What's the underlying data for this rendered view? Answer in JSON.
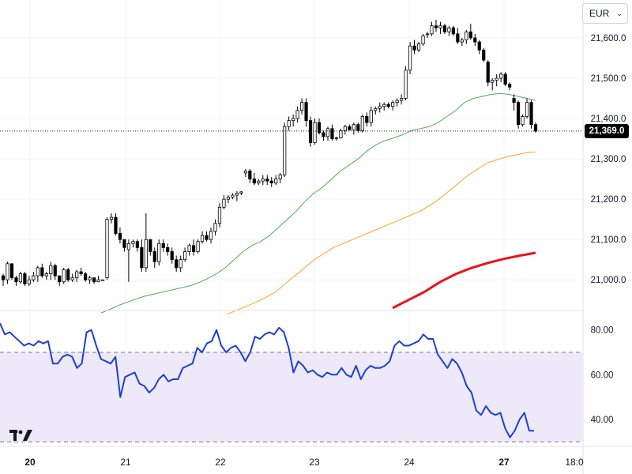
{
  "currency": {
    "label": "EUR"
  },
  "last_price": {
    "label": "21,369.0",
    "value": 21369
  },
  "colors": {
    "candle": "#000000",
    "sma_short": "#4caf50",
    "sma_mid": "#f5a623",
    "sma_long": "#e8141a",
    "rsi": "#1e3fd1",
    "rsi_band": "#ede9f9"
  },
  "chart_data": [
    {
      "type": "candlestick",
      "title": "",
      "price_axis": {
        "ticks": [
          21000,
          21100,
          21200,
          21300,
          21400,
          21500,
          21600
        ],
        "tick_labels": [
          "21,000.0",
          "21,100.0",
          "21,200.0",
          "21,300.0",
          "21,400.0",
          "21,500.0",
          "21,600.0"
        ],
        "ylim": [
          20924,
          21694
        ]
      },
      "time_axis": {
        "labels": [
          "20",
          "21",
          "22",
          "23",
          "24",
          "27",
          "18:0"
        ]
      },
      "candles_ohlc": [
        [
          21010,
          21015,
          20985,
          21000
        ],
        [
          21000,
          21045,
          20990,
          21040
        ],
        [
          21040,
          21040,
          21000,
          21005
        ],
        [
          21005,
          21010,
          20985,
          20995
        ],
        [
          20995,
          21020,
          20990,
          21015
        ],
        [
          21015,
          21020,
          20985,
          20990
        ],
        [
          20990,
          21010,
          20985,
          21000
        ],
        [
          21000,
          21020,
          20995,
          21010
        ],
        [
          21010,
          21035,
          20995,
          21030
        ],
        [
          21030,
          21040,
          21005,
          21010
        ],
        [
          21010,
          21020,
          21000,
          21015
        ],
        [
          21015,
          21045,
          21000,
          21035
        ],
        [
          21035,
          21040,
          21000,
          21010
        ],
        [
          21010,
          21010,
          20985,
          20995
        ],
        [
          20995,
          21030,
          20990,
          21025
        ],
        [
          21025,
          21030,
          20995,
          21000
        ],
        [
          21000,
          21015,
          20995,
          21005
        ],
        [
          21005,
          21025,
          20995,
          21020
        ],
        [
          21020,
          21030,
          21010,
          21015
        ],
        [
          21015,
          21020,
          20995,
          21000
        ],
        [
          21000,
          21010,
          20990,
          21005
        ],
        [
          21005,
          21005,
          20990,
          20995
        ],
        [
          20995,
          21010,
          20995,
          21000
        ],
        [
          21000,
          21000,
          21000,
          21000
        ],
        [
          21005,
          21155,
          21000,
          21150
        ],
        [
          21150,
          21165,
          21140,
          21155
        ],
        [
          21155,
          21165,
          21110,
          21115
        ],
        [
          21115,
          21130,
          21090,
          21100
        ],
        [
          21100,
          21100,
          21070,
          21080
        ],
        [
          21075,
          21100,
          20995,
          21090
        ],
        [
          21090,
          21100,
          21080,
          21095
        ],
        [
          21095,
          21100,
          21070,
          21080
        ],
        [
          21080,
          21100,
          21020,
          21030
        ],
        [
          21030,
          21165,
          21020,
          21100
        ],
        [
          21100,
          21100,
          21060,
          21070
        ],
        [
          21070,
          21080,
          21030,
          21045
        ],
        [
          21045,
          21100,
          21035,
          21090
        ],
        [
          21090,
          21100,
          21070,
          21080
        ],
        [
          21080,
          21090,
          21060,
          21070
        ],
        [
          21070,
          21080,
          21040,
          21050
        ],
        [
          21050,
          21060,
          21020,
          21030
        ],
        [
          21030,
          21060,
          21020,
          21050
        ],
        [
          21050,
          21080,
          21045,
          21070
        ],
        [
          21070,
          21090,
          21060,
          21085
        ],
        [
          21085,
          21100,
          21060,
          21070
        ],
        [
          21070,
          21100,
          21065,
          21095
        ],
        [
          21095,
          21120,
          21090,
          21110
        ],
        [
          21110,
          21120,
          21095,
          21100
        ],
        [
          21100,
          21130,
          21090,
          21120
        ],
        [
          21120,
          21150,
          21110,
          21140
        ],
        [
          21140,
          21190,
          21130,
          21180
        ],
        [
          21180,
          21210,
          21175,
          21200
        ],
        [
          21200,
          21210,
          21190,
          21205
        ],
        [
          21205,
          21215,
          21200,
          21210
        ],
        [
          21210,
          21220,
          21195,
          21215
        ],
        [
          21215,
          21220,
          21210,
          21218
        ],
        [
          21265,
          21275,
          21255,
          21270
        ],
        [
          21270,
          21275,
          21240,
          21250
        ],
        [
          21250,
          21265,
          21235,
          21240
        ],
        [
          21240,
          21250,
          21235,
          21245
        ],
        [
          21245,
          21260,
          21235,
          21250
        ],
        [
          21250,
          21260,
          21235,
          21245
        ],
        [
          21245,
          21255,
          21230,
          21240
        ],
        [
          21240,
          21260,
          21235,
          21250
        ],
        [
          21250,
          21265,
          21240,
          21260
        ],
        [
          21260,
          21390,
          21255,
          21380
        ],
        [
          21380,
          21405,
          21370,
          21395
        ],
        [
          21395,
          21410,
          21380,
          21400
        ],
        [
          21400,
          21430,
          21390,
          21420
        ],
        [
          21420,
          21450,
          21410,
          21440
        ],
        [
          21440,
          21450,
          21380,
          21395
        ],
        [
          21395,
          21405,
          21330,
          21340
        ],
        [
          21340,
          21400,
          21335,
          21390
        ],
        [
          21390,
          21400,
          21360,
          21365
        ],
        [
          21365,
          21370,
          21345,
          21355
        ],
        [
          21355,
          21380,
          21345,
          21375
        ],
        [
          21375,
          21385,
          21345,
          21350
        ],
        [
          21350,
          21355,
          21345,
          21352
        ],
        [
          21352,
          21375,
          21350,
          21370
        ],
        [
          21370,
          21385,
          21360,
          21380
        ],
        [
          21380,
          21385,
          21370,
          21372
        ],
        [
          21372,
          21390,
          21360,
          21385
        ],
        [
          21385,
          21390,
          21365,
          21370
        ],
        [
          21370,
          21410,
          21365,
          21405
        ],
        [
          21405,
          21415,
          21380,
          21390
        ],
        [
          21390,
          21430,
          21380,
          21420
        ],
        [
          21420,
          21430,
          21410,
          21425
        ],
        [
          21425,
          21440,
          21415,
          21430
        ],
        [
          21430,
          21440,
          21420,
          21435
        ],
        [
          21435,
          21440,
          21425,
          21430
        ],
        [
          21430,
          21445,
          21420,
          21440
        ],
        [
          21440,
          21450,
          21430,
          21445
        ],
        [
          21445,
          21460,
          21435,
          21450
        ],
        [
          21450,
          21530,
          21445,
          21520
        ],
        [
          21520,
          21590,
          21510,
          21580
        ],
        [
          21580,
          21595,
          21560,
          21570
        ],
        [
          21570,
          21590,
          21565,
          21585
        ],
        [
          21585,
          21610,
          21580,
          21605
        ],
        [
          21610,
          21615,
          21600,
          21610
        ],
        [
          21610,
          21640,
          21605,
          21630
        ],
        [
          21630,
          21645,
          21615,
          21625
        ],
        [
          21625,
          21640,
          21610,
          21630
        ],
        [
          21630,
          21635,
          21610,
          21615
        ],
        [
          21615,
          21630,
          21605,
          21625
        ],
        [
          21625,
          21630,
          21605,
          21610
        ],
        [
          21610,
          21625,
          21585,
          21590
        ],
        [
          21590,
          21600,
          21580,
          21595
        ],
        [
          21595,
          21620,
          21585,
          21615
        ],
        [
          21615,
          21635,
          21595,
          21600
        ],
        [
          21600,
          21610,
          21580,
          21590
        ],
        [
          21590,
          21595,
          21560,
          21570
        ],
        [
          21570,
          21575,
          21540,
          21545
        ],
        [
          21540,
          21545,
          21480,
          21490
        ],
        [
          21490,
          21500,
          21470,
          21495
        ],
        [
          21495,
          21510,
          21480,
          21500
        ],
        [
          21500,
          21515,
          21490,
          21510
        ],
        [
          21510,
          21515,
          21480,
          21485
        ],
        [
          21485,
          21490,
          21470,
          21478
        ],
        [
          21450,
          21460,
          21420,
          21440
        ],
        [
          21440,
          21445,
          21375,
          21385
        ],
        [
          21385,
          21410,
          21380,
          21405
        ],
        [
          21405,
          21450,
          21400,
          21440
        ],
        [
          21440,
          21445,
          21375,
          21385
        ],
        [
          21385,
          21390,
          21365,
          21369
        ]
      ],
      "series": [
        {
          "name": "",
          "kind": "sma_short",
          "values": [
            20918,
            20927,
            20937,
            20945,
            20953,
            20960,
            20965,
            20970,
            20975,
            20980,
            20985,
            20993,
            21003,
            21015,
            21030,
            21050,
            21070,
            21085,
            21095,
            21110,
            21130,
            21150,
            21170,
            21195,
            21215,
            21230,
            21250,
            21270,
            21285,
            21300,
            21320,
            21335,
            21345,
            21352,
            21360,
            21370,
            21375,
            21380,
            21390,
            21405,
            21420,
            21440,
            21450,
            21455,
            21460,
            21462,
            21460,
            21455,
            21450,
            21445
          ]
        },
        {
          "name": "",
          "kind": "sma_mid",
          "values": [
            20915,
            20925,
            20935,
            20945,
            20957,
            20970,
            20990,
            21010,
            21030,
            21050,
            21065,
            21080,
            21090,
            21100,
            21110,
            21120,
            21130,
            21140,
            21150,
            21160,
            21170,
            21185,
            21200,
            21220,
            21240,
            21260,
            21275,
            21290,
            21298,
            21305,
            21310,
            21315,
            21317
          ]
        },
        {
          "name": "",
          "kind": "sma_long",
          "values": [
            20930,
            20950,
            20970,
            20995,
            21015,
            21030,
            21042,
            21052,
            21060,
            21067
          ]
        }
      ]
    },
    {
      "type": "line",
      "title": "",
      "ylim": [
        28,
        88
      ],
      "yticks": [
        40,
        60,
        80
      ],
      "tick_labels": [
        "40.00",
        "60.00",
        "80.00"
      ],
      "band": [
        30,
        70
      ],
      "series": [
        {
          "name": "",
          "values": [
            83,
            78,
            79,
            77,
            75,
            73,
            74,
            73,
            75,
            74,
            75,
            65,
            65,
            68,
            69,
            68,
            63,
            65,
            79,
            80,
            73,
            67,
            66,
            65,
            68,
            50,
            59,
            60,
            61,
            56,
            55,
            52,
            54,
            58,
            60,
            57,
            58,
            58,
            63,
            64,
            65,
            72,
            70,
            74,
            75,
            80,
            73,
            70,
            72,
            73,
            70,
            66,
            70,
            77,
            76,
            78,
            79,
            78,
            81,
            79,
            72,
            61,
            66,
            64,
            61,
            62,
            60,
            59,
            61,
            60,
            60,
            63,
            60,
            59,
            64,
            58,
            62,
            64,
            63,
            63,
            64,
            66,
            73,
            75,
            73,
            73,
            74,
            75,
            78,
            76,
            76,
            69,
            66,
            63,
            67,
            65,
            61,
            55,
            52,
            44,
            42,
            46,
            43,
            42,
            43,
            36,
            32,
            35,
            40,
            43,
            35,
            35
          ]
        }
      ]
    }
  ]
}
